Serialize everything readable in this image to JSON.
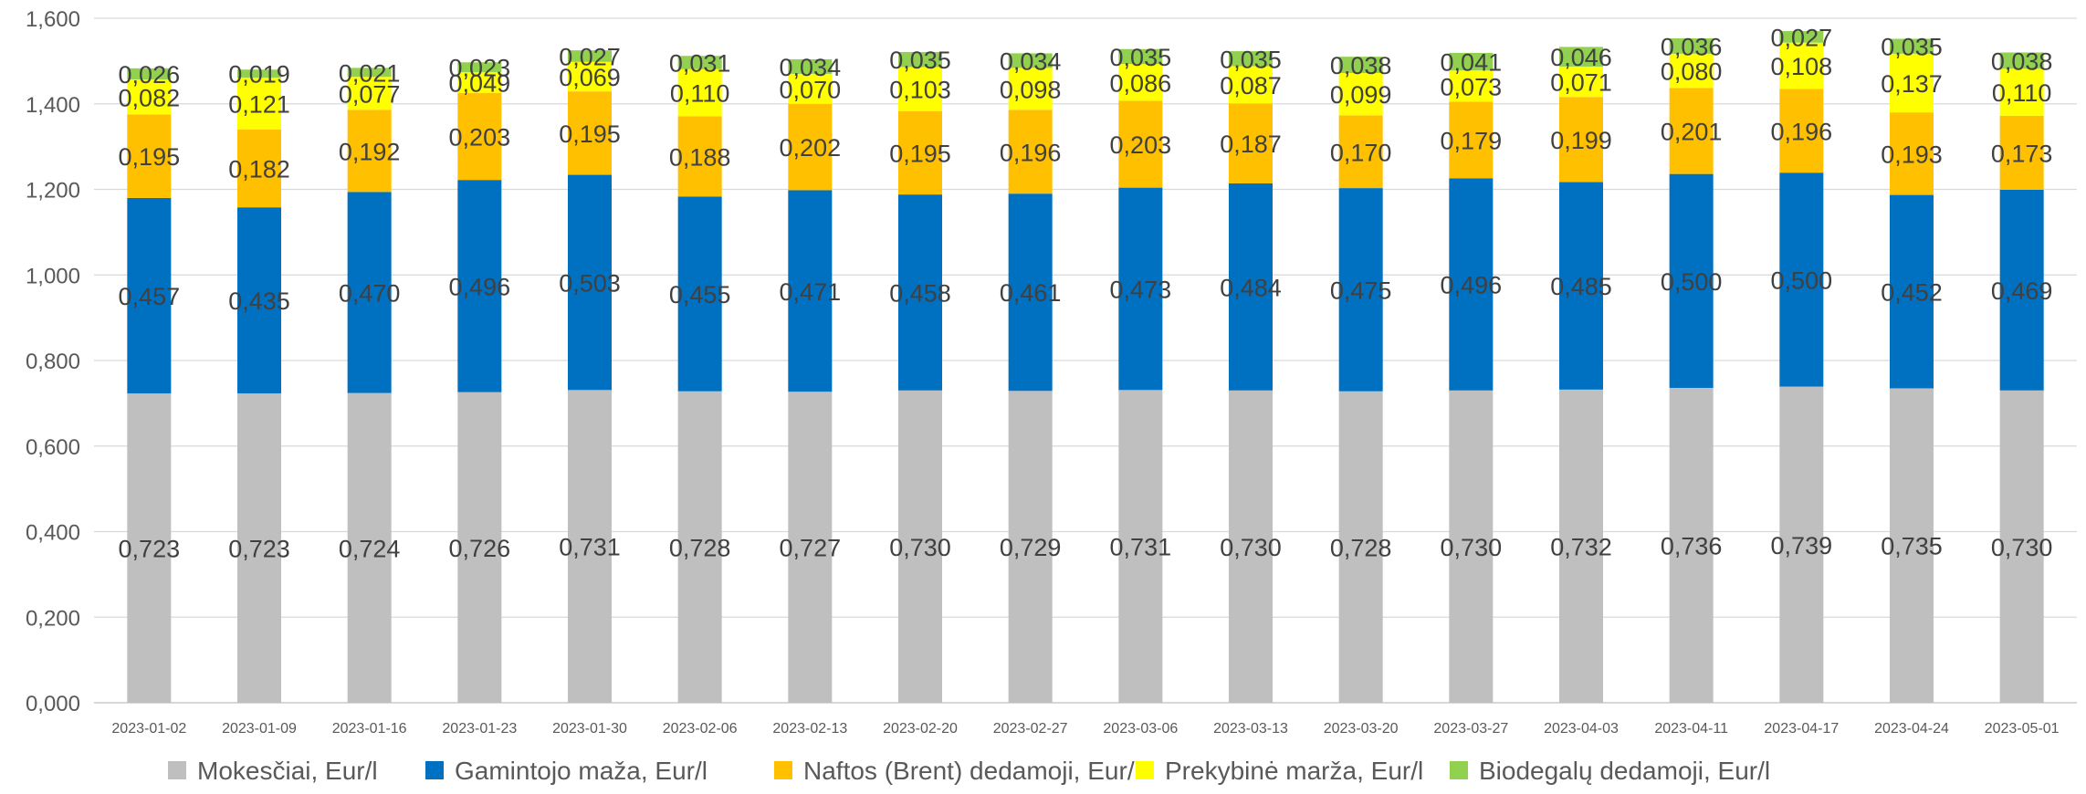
{
  "chart_data": {
    "type": "bar",
    "stacked": true,
    "title": "",
    "xlabel": "",
    "ylabel": "",
    "ylim": [
      0,
      1.6
    ],
    "y_ticks": [
      "0,000",
      "0,200",
      "0,400",
      "0,600",
      "0,800",
      "1,000",
      "1,200",
      "1,400",
      "1,600"
    ],
    "grid": true,
    "legend_position": "bottom",
    "categories": [
      "2023-01-02",
      "2023-01-09",
      "2023-01-16",
      "2023-01-23",
      "2023-01-30",
      "2023-02-06",
      "2023-02-13",
      "2023-02-20",
      "2023-02-27",
      "2023-03-06",
      "2023-03-13",
      "2023-03-20",
      "2023-03-27",
      "2023-04-03",
      "2023-04-11",
      "2023-04-17",
      "2023-04-24",
      "2023-05-01"
    ],
    "series": [
      {
        "name": "Mokesčiai, Eur/l",
        "color": "#BFBFBF",
        "values": [
          0.723,
          0.723,
          0.724,
          0.726,
          0.731,
          0.728,
          0.727,
          0.73,
          0.729,
          0.731,
          0.73,
          0.728,
          0.73,
          0.732,
          0.736,
          0.739,
          0.735,
          0.73
        ],
        "labels": [
          "0,723",
          "0,723",
          "0,724",
          "0,726",
          "0,731",
          "0,728",
          "0,727",
          "0,730",
          "0,729",
          "0,731",
          "0,730",
          "0,728",
          "0,730",
          "0,732",
          "0,736",
          "0,739",
          "0,735",
          "0,730"
        ]
      },
      {
        "name": "Gamintojo maža, Eur/l",
        "color": "#0070C0",
        "values": [
          0.457,
          0.435,
          0.47,
          0.496,
          0.503,
          0.455,
          0.471,
          0.458,
          0.461,
          0.473,
          0.484,
          0.475,
          0.496,
          0.485,
          0.5,
          0.5,
          0.452,
          0.469
        ],
        "labels": [
          "0,457",
          "0,435",
          "0,470",
          "0,496",
          "0,503",
          "0,455",
          "0,471",
          "0,458",
          "0,461",
          "0,473",
          "0,484",
          "0,475",
          "0,496",
          "0,485",
          "0,500",
          "0,500",
          "0,452",
          "0,469"
        ]
      },
      {
        "name": "Naftos (Brent) dedamoji, Eur/l",
        "color": "#FFC000",
        "values": [
          0.195,
          0.182,
          0.192,
          0.203,
          0.195,
          0.188,
          0.202,
          0.195,
          0.196,
          0.203,
          0.187,
          0.17,
          0.179,
          0.199,
          0.201,
          0.196,
          0.193,
          0.173
        ],
        "labels": [
          "0,195",
          "0,182",
          "0,192",
          "0,203",
          "0,195",
          "0,188",
          "0,202",
          "0,195",
          "0,196",
          "0,203",
          "0,187",
          "0,170",
          "0,179",
          "0,199",
          "0,201",
          "0,196",
          "0,193",
          "0,173"
        ]
      },
      {
        "name": "Prekybinė marža, Eur/l",
        "color": "#FFFF00",
        "values": [
          0.082,
          0.121,
          0.077,
          0.049,
          0.069,
          0.11,
          0.07,
          0.103,
          0.098,
          0.086,
          0.087,
          0.099,
          0.073,
          0.071,
          0.08,
          0.108,
          0.137,
          0.11
        ],
        "labels": [
          "0,082",
          "0,121",
          "0,077",
          "0,049",
          "0,069",
          "0,110",
          "0,070",
          "0,103",
          "0,098",
          "0,086",
          "0,087",
          "0,099",
          "0,073",
          "0,071",
          "0,080",
          "0,108",
          "0,137",
          "0,110"
        ]
      },
      {
        "name": "Biodegalų dedamoji, Eur/l",
        "color": "#92D050",
        "values": [
          0.026,
          0.019,
          0.021,
          0.023,
          0.027,
          0.031,
          0.034,
          0.035,
          0.034,
          0.035,
          0.035,
          0.038,
          0.041,
          0.046,
          0.036,
          0.027,
          0.035,
          0.038
        ],
        "labels": [
          "0,026",
          "0,019",
          "0,021",
          "0,023",
          "0,027",
          "0,031",
          "0,034",
          "0,035",
          "0,034",
          "0,035",
          "0,035",
          "0,038",
          "0,041",
          "0,046",
          "0,036",
          "0,027",
          "0,035",
          "0,038"
        ]
      }
    ]
  }
}
